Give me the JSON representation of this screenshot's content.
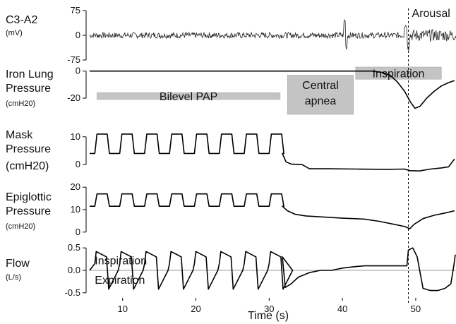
{
  "chart_data": {
    "type": "line",
    "xlabel": "Time (s)",
    "xlim": [
      5.5,
      55.5
    ],
    "xticks": [
      10,
      20,
      30,
      40,
      50
    ],
    "arousal_time": 49,
    "panels": [
      {
        "id": "eeg",
        "label": "C3-A2",
        "unit": "(mV)",
        "ylim": [
          -75,
          75
        ],
        "yticks": [
          "75",
          "0",
          "-75"
        ],
        "yticks_values": [
          75,
          0,
          -75
        ],
        "description_series": "eeg",
        "annotations": [
          {
            "text": "Arousal",
            "x": 51.5,
            "y": 50
          }
        ]
      },
      {
        "id": "iron-lung",
        "label": "Iron Lung",
        "label2": "Pressure",
        "unit": "(cmH20)",
        "ylim": [
          -32,
          3
        ],
        "yticks": [
          "0",
          "-20"
        ],
        "yticks_values": [
          0,
          -20
        ],
        "points": [
          [
            5.5,
            0
          ],
          [
            44,
            0
          ],
          [
            45.5,
            -1
          ],
          [
            46.5,
            -3
          ],
          [
            47.5,
            -8
          ],
          [
            48.5,
            -15
          ],
          [
            49.3,
            -23
          ],
          [
            49.9,
            -27.5
          ],
          [
            50.6,
            -26
          ],
          [
            51.5,
            -20
          ],
          [
            52.5,
            -15
          ],
          [
            53.5,
            -11
          ],
          [
            54.5,
            -8.5
          ],
          [
            55.3,
            -7
          ]
        ],
        "boxes": [
          {
            "text": "Bilevel PAP",
            "x0": 6.5,
            "x1": 31.5,
            "y0": -16,
            "y1": -21
          },
          {
            "text": "Central",
            "text2": "apnea",
            "x0": 32.5,
            "x1": 41.5,
            "y0": -3,
            "y1": -32
          },
          {
            "text": "Inspiration",
            "x0": 41.8,
            "x1": 53.5,
            "y0": 3,
            "y1": -6
          }
        ]
      },
      {
        "id": "mask",
        "label": "Mask",
        "label2": "Pressure",
        "unit": "(cmH20)",
        "ylim": [
          -3,
          13
        ],
        "yticks": [
          "10",
          "0"
        ],
        "yticks_values": [
          10,
          0
        ],
        "cycle_starts": [
          6.2,
          9.6,
          13.0,
          16.4,
          19.8,
          23.2,
          26.6,
          30.0
        ],
        "high_value": 11,
        "low_value": 4,
        "points_after": [
          [
            31.8,
            4
          ],
          [
            32.3,
            1
          ],
          [
            33,
            0.2
          ],
          [
            34.5,
            0
          ],
          [
            35.5,
            -1.5
          ],
          [
            38,
            -1.5
          ],
          [
            42,
            -1.6
          ],
          [
            46,
            -1.7
          ],
          [
            48.5,
            -1.6
          ],
          [
            49.2,
            -2.2
          ],
          [
            50.5,
            -2.3
          ],
          [
            52,
            -1.6
          ],
          [
            53.5,
            -1.2
          ],
          [
            54.5,
            -0.8
          ],
          [
            55,
            1
          ],
          [
            55.3,
            2
          ]
        ]
      },
      {
        "id": "epiglottic",
        "label": "Epiglottic",
        "label2": "Pressure",
        "unit": "(cmH20)",
        "ylim": [
          -1,
          21
        ],
        "yticks": [
          "20",
          "10",
          "0"
        ],
        "yticks_values": [
          20,
          10,
          0
        ],
        "cycle_starts": [
          6.2,
          9.6,
          13.0,
          16.4,
          19.8,
          23.2,
          26.6,
          30.0
        ],
        "high_value": 17,
        "low_value": 11.5,
        "points_after": [
          [
            31.8,
            11.5
          ],
          [
            32.5,
            9.5
          ],
          [
            33.5,
            8
          ],
          [
            35,
            7.2
          ],
          [
            37,
            6.8
          ],
          [
            40,
            6.2
          ],
          [
            43,
            5.8
          ],
          [
            45,
            4.8
          ],
          [
            47,
            3.5
          ],
          [
            48.5,
            2.5
          ],
          [
            49.2,
            1.5
          ],
          [
            49.8,
            3.5
          ],
          [
            51,
            6
          ],
          [
            52.5,
            7.5
          ],
          [
            54,
            8.5
          ],
          [
            55.3,
            9.5
          ]
        ]
      },
      {
        "id": "flow",
        "label": "Flow",
        "unit": "(L/s)",
        "ylim": [
          -0.55,
          0.55
        ],
        "yticks": [
          "0.5",
          "0.0",
          "-0.5"
        ],
        "yticks_values": [
          0.5,
          0.0,
          -0.5
        ],
        "cycle_starts": [
          6.2,
          9.6,
          13.0,
          16.4,
          19.8,
          23.2,
          26.6,
          30.0
        ],
        "peak_value": 0.42,
        "trough_value": -0.42,
        "points_after": [
          [
            31.8,
            0.3
          ],
          [
            32.2,
            -0.38
          ],
          [
            33,
            -0.3
          ],
          [
            34,
            -0.15
          ],
          [
            35.5,
            -0.05
          ],
          [
            37,
            0.0
          ],
          [
            38.5,
            0.0
          ],
          [
            40,
            0.05
          ],
          [
            41.5,
            0.08
          ],
          [
            43,
            0.1
          ],
          [
            45,
            0.1
          ],
          [
            47,
            0.1
          ],
          [
            48.8,
            0.1
          ],
          [
            49,
            0.45
          ],
          [
            49.6,
            0.5
          ],
          [
            50.2,
            0.3
          ],
          [
            51,
            -0.4
          ],
          [
            52,
            -0.45
          ],
          [
            53,
            -0.45
          ],
          [
            54,
            -0.4
          ],
          [
            54.8,
            -0.3
          ],
          [
            55.2,
            0.1
          ],
          [
            55.4,
            0.35
          ]
        ],
        "annotations": [
          {
            "text": "Inspiration",
            "x": 6.2,
            "y": 0.13
          },
          {
            "text": "Expiration",
            "x": 6.2,
            "y": -0.3
          }
        ]
      }
    ]
  }
}
